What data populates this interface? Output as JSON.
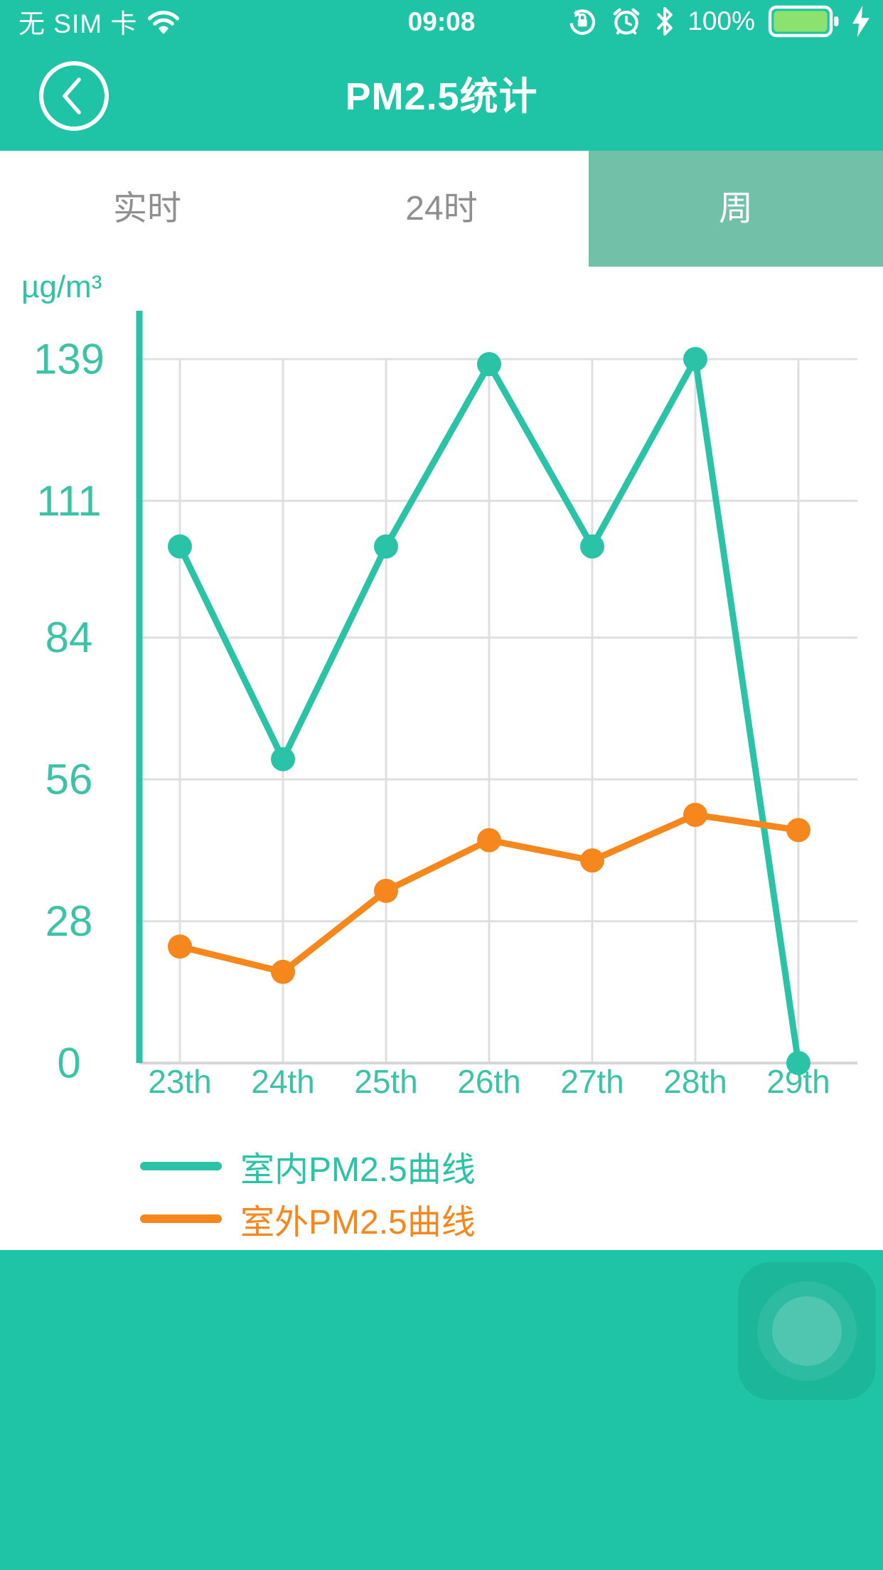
{
  "status_bar": {
    "carrier": "无 SIM 卡",
    "time": "09:08",
    "battery_percent": "100%",
    "icons": [
      "wifi-icon",
      "rotation-lock-icon",
      "alarm-icon",
      "bluetooth-icon",
      "battery-icon",
      "charging-bolt-icon"
    ],
    "battery_color": "#8be26e"
  },
  "header": {
    "title": "PM2.5统计",
    "back_icon": "chevron-left"
  },
  "tabs": [
    {
      "label": "实时",
      "active": false
    },
    {
      "label": "24时",
      "active": false
    },
    {
      "label": "周",
      "active": true
    }
  ],
  "chart_data": {
    "type": "line",
    "title": "PM2.5统计 - 周",
    "unit_label": "µg/m³",
    "x_categories": [
      "23th",
      "24th",
      "25th",
      "26th",
      "27th",
      "28th",
      "29th"
    ],
    "y_ticks": [
      139,
      111,
      84,
      56,
      28,
      0
    ],
    "ylim": [
      0,
      139
    ],
    "grid": true,
    "legend_position": "bottom-left",
    "series": [
      {
        "name": "室内PM2.5曲线",
        "color": "#2ac3a7",
        "values": [
          102,
          60,
          102,
          138,
          102,
          139,
          0
        ]
      },
      {
        "name": "室外PM2.5曲线",
        "color": "#f6871d",
        "values": [
          23,
          18,
          34,
          44,
          40,
          49,
          46
        ]
      }
    ]
  },
  "colors": {
    "chrome_teal": "#1fc3a6",
    "active_tab": "#72c0a7",
    "tick_label": "#3cc2a7",
    "gridline": "#dfdfdf",
    "axis_bottom": "#d6d6d6"
  }
}
